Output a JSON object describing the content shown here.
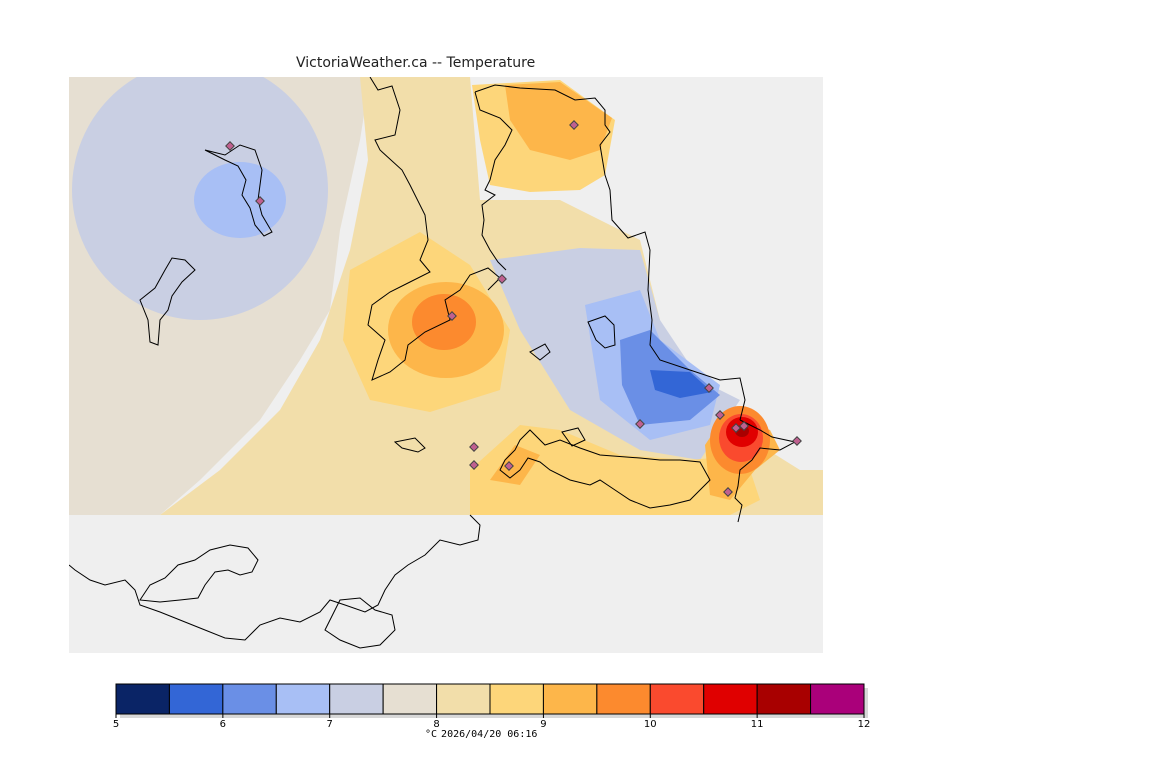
{
  "title": "VictoriaWeather.ca -- Temperature",
  "colorbar": {
    "ticks": [
      "5",
      "6",
      "7",
      "8",
      "9",
      "10",
      "11",
      "12"
    ],
    "colors": [
      "#0a2466",
      "#3366d6",
      "#6a8fe6",
      "#a8bff5",
      "#c9cfe3",
      "#e6dfd2",
      "#f2deaa",
      "#fdd67a",
      "#fdb64a",
      "#fc8a2e",
      "#fa4a2e",
      "#e00000",
      "#a80000",
      "#aa007a"
    ],
    "unit": "°C",
    "timestamp": "2026/04/20 06:16"
  },
  "map_colors": {
    "background": "#efefef",
    "land_base": "#e6dfd2",
    "coast": "#000000",
    "station_marker": "#c06090"
  },
  "icons": [
    "station-marker-icon"
  ]
}
